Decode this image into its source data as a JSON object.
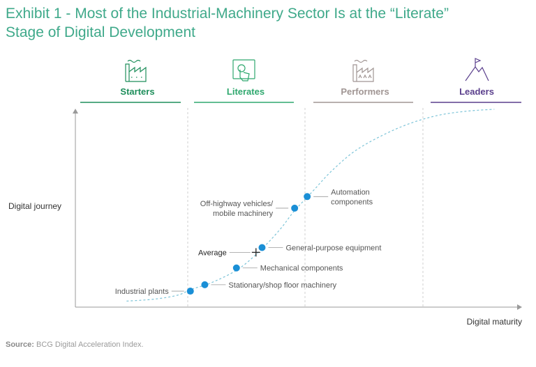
{
  "header": {
    "title_line1": "Exhibit 1 - Most of the Industrial-Machinery Sector Is at the “Literate”",
    "title_line2": "Stage of Digital Development"
  },
  "source": {
    "label": "Source:",
    "text": "BCG Digital Acceleration Index."
  },
  "colors": {
    "title": "#3fa98a",
    "starters": "#1e8e5b",
    "literates": "#2fa86e",
    "performers": "#a09593",
    "leaders": "#5a3f8c",
    "dot": "#1a8fd6",
    "curve": "#7cc4d8",
    "axis": "#9a9a9a"
  },
  "chart_data": {
    "type": "scatter",
    "title": "Most of the Industrial-Machinery Sector Is at the “Literate” Stage of Digital Development",
    "xlabel": "Digital maturity",
    "ylabel": "Digital journey",
    "xlim": [
      0,
      100
    ],
    "ylim": [
      0,
      100
    ],
    "grid": false,
    "stages": [
      {
        "name": "Starters",
        "icon": "factory-icon",
        "x_range": [
          0,
          25
        ]
      },
      {
        "name": "Literates",
        "icon": "touchscreen-icon",
        "x_range": [
          25,
          50
        ]
      },
      {
        "name": "Performers",
        "icon": "smart-factory-icon",
        "x_range": [
          50,
          75
        ]
      },
      {
        "name": "Leaders",
        "icon": "mountain-flag-icon",
        "x_range": [
          75,
          100
        ]
      }
    ],
    "curve": {
      "style": "dashed",
      "x": [
        11,
        17,
        22,
        25,
        29,
        35,
        40,
        44,
        47,
        51,
        55,
        60,
        66,
        72,
        78,
        84,
        90
      ],
      "y": [
        3,
        4,
        6,
        9,
        12,
        19,
        29,
        39,
        48,
        58,
        68,
        78,
        86,
        92,
        96,
        98,
        99
      ]
    },
    "points": [
      {
        "label": "Industrial plants",
        "x": 24.7,
        "y": 8.0,
        "label_side": "left"
      },
      {
        "label": "Stationary/shop floor machinery",
        "x": 27.8,
        "y": 11.2,
        "label_side": "right"
      },
      {
        "label": "Mechanical components",
        "x": 34.6,
        "y": 19.6,
        "label_side": "right"
      },
      {
        "label": "General-purpose equipment",
        "x": 40.1,
        "y": 29.8,
        "label_side": "right"
      },
      {
        "label": "Off-highway vehicles/\nmobile machinery",
        "x": 47.1,
        "y": 49.5,
        "label_side": "left"
      },
      {
        "label": "Automation\ncomponents",
        "x": 49.8,
        "y": 55.3,
        "label_side": "right"
      }
    ],
    "average": {
      "label": "Average",
      "x": 38.8,
      "y": 27.4
    }
  }
}
